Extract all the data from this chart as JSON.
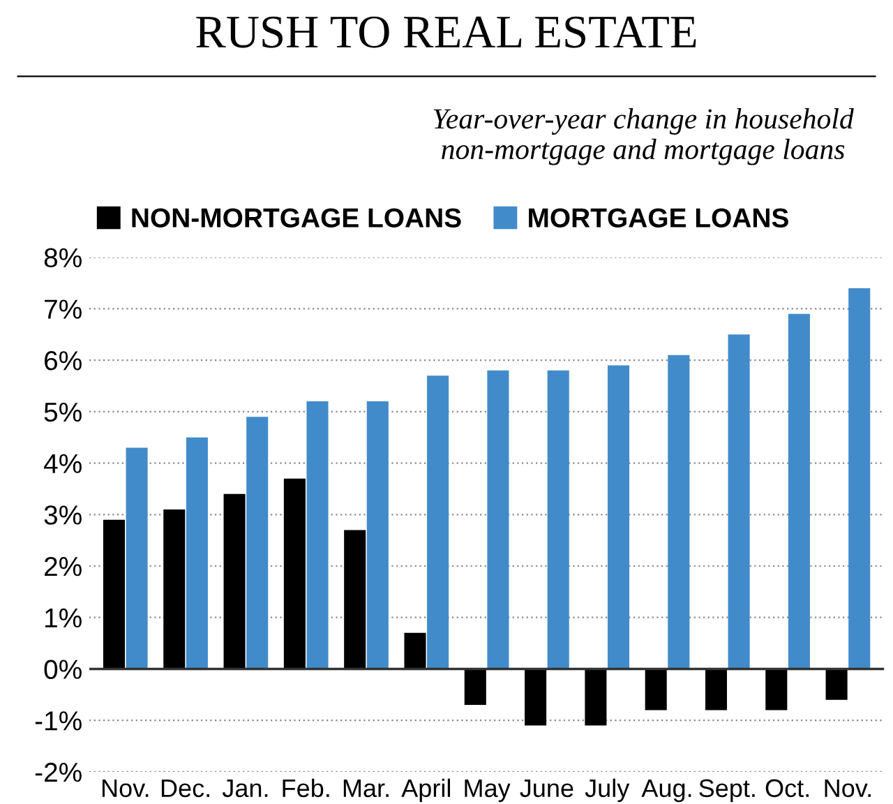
{
  "chart_data": {
    "type": "bar",
    "title": "RUSH TO REAL ESTATE",
    "subtitle": "Year-over-year change in household\nnon-mortgage and mortgage loans",
    "categories": [
      "Nov.",
      "Dec.",
      "Jan.",
      "Feb.",
      "Mar.",
      "April",
      "May",
      "June",
      "July",
      "Aug.",
      "Sept.",
      "Oct.",
      "Nov."
    ],
    "series": [
      {
        "name": "NON-MORTGAGE LOANS",
        "color": "#000000",
        "values": [
          2.9,
          3.1,
          3.4,
          3.7,
          2.7,
          0.7,
          -0.7,
          -1.1,
          -1.1,
          -0.8,
          -0.8,
          -0.8,
          -0.6
        ]
      },
      {
        "name": "MORTGAGE LOANS",
        "color": "#428bca",
        "values": [
          4.3,
          4.5,
          4.9,
          5.2,
          5.2,
          5.7,
          5.8,
          5.8,
          5.9,
          6.1,
          6.5,
          6.9,
          7.4
        ]
      }
    ],
    "ylim": [
      -2,
      8
    ],
    "yticks": [
      {
        "value": -2,
        "label": "-2%"
      },
      {
        "value": -1,
        "label": "-1%"
      },
      {
        "value": 0,
        "label": "0%"
      },
      {
        "value": 1,
        "label": "1%"
      },
      {
        "value": 2,
        "label": "2%"
      },
      {
        "value": 3,
        "label": "3%"
      },
      {
        "value": 4,
        "label": "4%"
      },
      {
        "value": 5,
        "label": "5%"
      },
      {
        "value": 6,
        "label": "6%"
      },
      {
        "value": 7,
        "label": "7%"
      },
      {
        "value": 8,
        "label": "8%"
      }
    ],
    "ref_lines": [
      {
        "axis": "y",
        "value": 0,
        "color": "#333333"
      }
    ],
    "grid": "y",
    "legend": "top left"
  }
}
